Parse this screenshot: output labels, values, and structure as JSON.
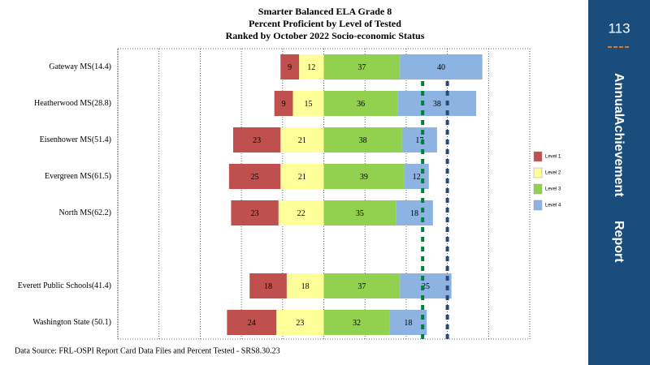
{
  "slide": {
    "page_number": "113",
    "side_title": [
      "Annual",
      "Achievement",
      "Report"
    ]
  },
  "chart_data": {
    "type": "diverging_bar",
    "title": [
      "Smarter Balanced ELA Grade 8",
      "Percent Proficient by Level of Tested",
      "Ranked by October 2022 Socio-economic Status"
    ],
    "source": "Data Source: FRL-OSPI Report Card Data Files and Percent Tested - SRS8.30.23",
    "categories": [
      "Gateway MS(14.4)",
      "Heatherwood MS(28.8)",
      "Eisenhower MS(51.4)",
      "Evergreen MS(61.5)",
      "North MS(62.2)",
      null,
      "Everett Public Schools(41.4)",
      "Washington State (50.1)"
    ],
    "series": [
      {
        "name": "Level 1",
        "color": "#c0504d",
        "side": "left",
        "values": [
          9,
          9,
          23,
          25,
          23,
          null,
          18,
          24
        ]
      },
      {
        "name": "Level 2",
        "color": "#ffff99",
        "side": "left",
        "values": [
          12,
          15,
          21,
          21,
          22,
          null,
          18,
          23
        ]
      },
      {
        "name": "Level 3",
        "color": "#92d050",
        "side": "right",
        "values": [
          37,
          36,
          38,
          39,
          35,
          null,
          37,
          32
        ]
      },
      {
        "name": "Level 4",
        "color": "#8db3e2",
        "side": "right",
        "values": [
          40,
          38,
          17,
          12,
          18,
          null,
          25,
          18
        ]
      }
    ],
    "xlim": [
      -100,
      100
    ],
    "xticks": [
      -100,
      -80,
      -60,
      -40,
      -20,
      0,
      20,
      40,
      60,
      80,
      100
    ],
    "reference_lines": [
      {
        "value": 48,
        "color": "#00803c"
      },
      {
        "value": 60,
        "color": "#2a4a7a"
      }
    ],
    "grid": true,
    "legend": "right"
  }
}
